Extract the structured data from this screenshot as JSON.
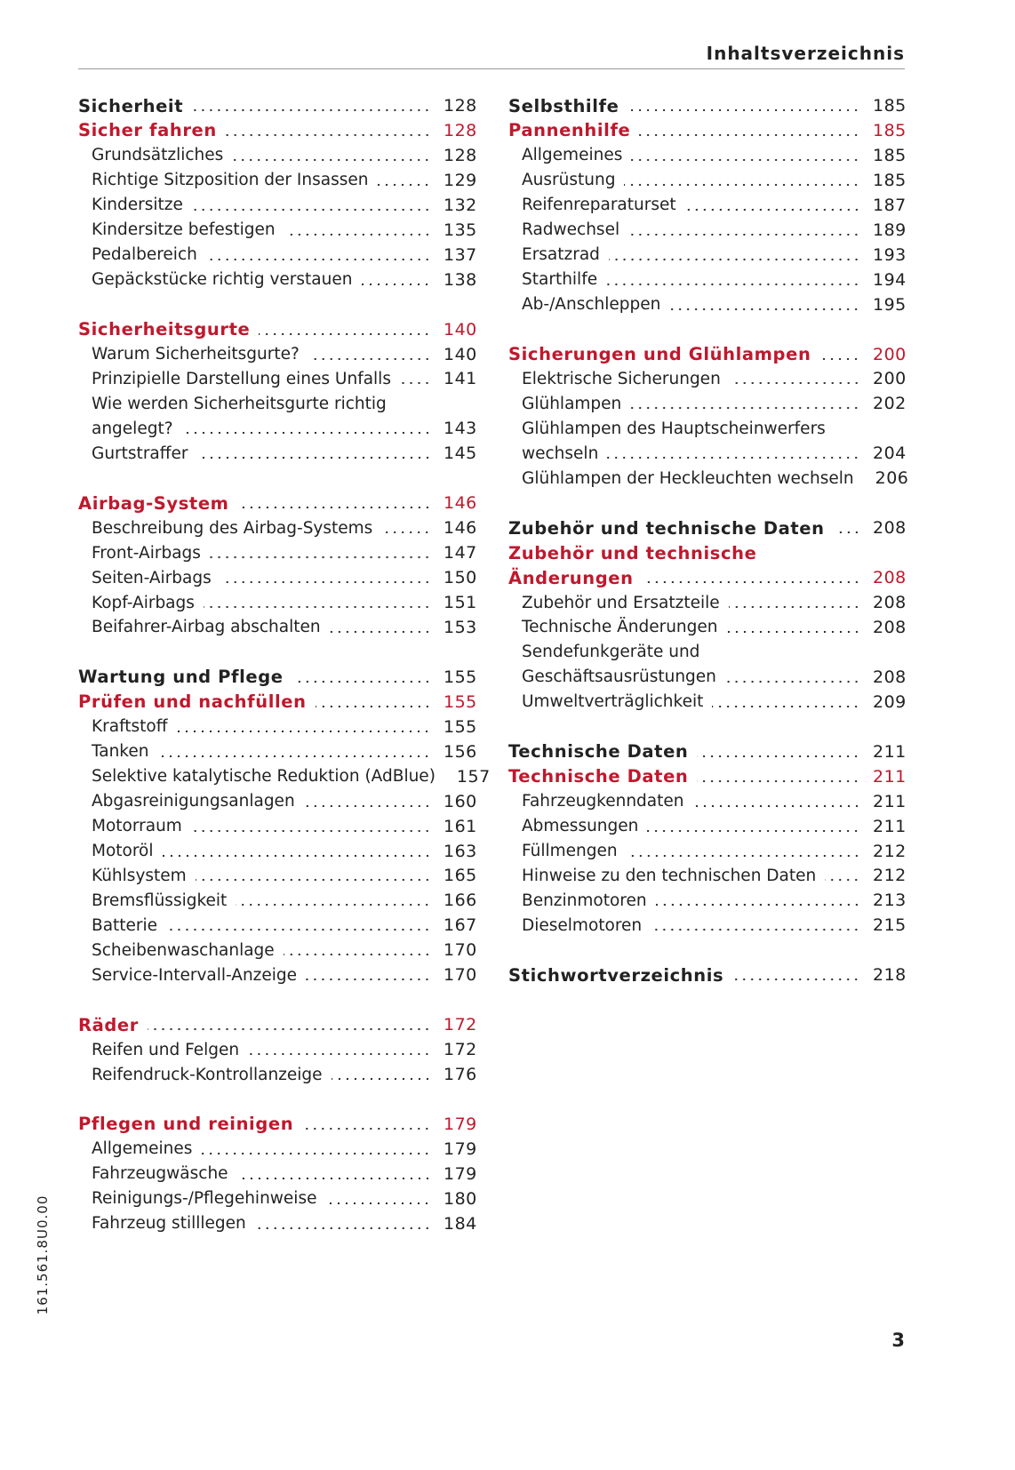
{
  "header": {
    "title": "Inhaltsverzeichnis"
  },
  "columns": [
    {
      "blocks": [
        {
          "chapter": {
            "lines": [
              "Sicherheit"
            ],
            "page": 128
          },
          "section": {
            "lines": [
              "Sicher fahren"
            ],
            "page": 128
          },
          "items": [
            {
              "lines": [
                "Grundsätzliches"
              ],
              "page": 128
            },
            {
              "lines": [
                "Richtige Sitzposition der Insassen"
              ],
              "page": 129
            },
            {
              "lines": [
                "Kindersitze"
              ],
              "page": 132
            },
            {
              "lines": [
                "Kindersitze befestigen"
              ],
              "page": 135
            },
            {
              "lines": [
                "Pedalbereich"
              ],
              "page": 137
            },
            {
              "lines": [
                "Gepäckstücke richtig verstauen"
              ],
              "page": 138
            }
          ]
        },
        {
          "section": {
            "lines": [
              "Sicherheitsgurte"
            ],
            "page": 140
          },
          "items": [
            {
              "lines": [
                "Warum Sicherheitsgurte?"
              ],
              "page": 140
            },
            {
              "lines": [
                "Prinzipielle Darstellung eines Unfalls"
              ],
              "page": 141
            },
            {
              "lines": [
                "Wie werden Sicherheitsgurte richtig",
                "angelegt?"
              ],
              "page": 143
            },
            {
              "lines": [
                "Gurtstraffer"
              ],
              "page": 145
            }
          ]
        },
        {
          "section": {
            "lines": [
              "Airbag-System"
            ],
            "page": 146
          },
          "items": [
            {
              "lines": [
                "Beschreibung des Airbag-Systems"
              ],
              "page": 146
            },
            {
              "lines": [
                "Front-Airbags"
              ],
              "page": 147
            },
            {
              "lines": [
                "Seiten-Airbags"
              ],
              "page": 150
            },
            {
              "lines": [
                "Kopf-Airbags"
              ],
              "page": 151
            },
            {
              "lines": [
                "Beifahrer-Airbag abschalten"
              ],
              "page": 153
            }
          ]
        },
        {
          "chapter": {
            "lines": [
              "Wartung und Pflege"
            ],
            "page": 155
          },
          "section": {
            "lines": [
              "Prüfen und nachfüllen"
            ],
            "page": 155
          },
          "items": [
            {
              "lines": [
                "Kraftstoff"
              ],
              "page": 155
            },
            {
              "lines": [
                "Tanken"
              ],
              "page": 156
            },
            {
              "lines": [
                "Selektive katalytische Reduktion (AdBlue)"
              ],
              "page": 157
            },
            {
              "lines": [
                "Abgasreinigungsanlagen"
              ],
              "page": 160
            },
            {
              "lines": [
                "Motorraum"
              ],
              "page": 161
            },
            {
              "lines": [
                "Motoröl"
              ],
              "page": 163
            },
            {
              "lines": [
                "Kühlsystem"
              ],
              "page": 165
            },
            {
              "lines": [
                "Bremsflüssigkeit"
              ],
              "page": 166
            },
            {
              "lines": [
                "Batterie"
              ],
              "page": 167
            },
            {
              "lines": [
                "Scheibenwaschanlage"
              ],
              "page": 170
            },
            {
              "lines": [
                "Service-Intervall-Anzeige"
              ],
              "page": 170
            }
          ]
        },
        {
          "section": {
            "lines": [
              "Räder"
            ],
            "page": 172
          },
          "items": [
            {
              "lines": [
                "Reifen und Felgen"
              ],
              "page": 172
            },
            {
              "lines": [
                "Reifendruck-Kontrollanzeige"
              ],
              "page": 176
            }
          ]
        },
        {
          "section": {
            "lines": [
              "Pflegen und reinigen"
            ],
            "page": 179
          },
          "items": [
            {
              "lines": [
                "Allgemeines"
              ],
              "page": 179
            },
            {
              "lines": [
                "Fahrzeugwäsche"
              ],
              "page": 179
            },
            {
              "lines": [
                "Reinigungs-/Pflegehinweise"
              ],
              "page": 180
            },
            {
              "lines": [
                "Fahrzeug stilllegen"
              ],
              "page": 184
            }
          ]
        }
      ]
    },
    {
      "blocks": [
        {
          "chapter": {
            "lines": [
              "Selbsthilfe"
            ],
            "page": 185
          },
          "section": {
            "lines": [
              "Pannenhilfe"
            ],
            "page": 185
          },
          "items": [
            {
              "lines": [
                "Allgemeines"
              ],
              "page": 185
            },
            {
              "lines": [
                "Ausrüstung"
              ],
              "page": 185
            },
            {
              "lines": [
                "Reifenreparaturset"
              ],
              "page": 187
            },
            {
              "lines": [
                "Radwechsel"
              ],
              "page": 189
            },
            {
              "lines": [
                "Ersatzrad"
              ],
              "page": 193
            },
            {
              "lines": [
                "Starthilfe"
              ],
              "page": 194
            },
            {
              "lines": [
                "Ab-/Anschleppen"
              ],
              "page": 195
            }
          ]
        },
        {
          "section": {
            "lines": [
              "Sicherungen und Glühlampen"
            ],
            "page": 200
          },
          "items": [
            {
              "lines": [
                "Elektrische Sicherungen"
              ],
              "page": 200
            },
            {
              "lines": [
                "Glühlampen"
              ],
              "page": 202
            },
            {
              "lines": [
                "Glühlampen des Hauptscheinwerfers",
                "wechseln"
              ],
              "page": 204
            },
            {
              "lines": [
                "Glühlampen der Heckleuchten wechseln"
              ],
              "page": 206
            }
          ]
        },
        {
          "chapter": {
            "lines": [
              "Zubehör und technische Daten"
            ],
            "page": 208
          },
          "section": {
            "lines": [
              "Zubehör und technische",
              "Änderungen"
            ],
            "page": 208
          },
          "items": [
            {
              "lines": [
                "Zubehör und Ersatzteile"
              ],
              "page": 208
            },
            {
              "lines": [
                "Technische Änderungen"
              ],
              "page": 208
            },
            {
              "lines": [
                "Sendefunkgeräte und",
                "Geschäftsausrüstungen"
              ],
              "page": 208
            },
            {
              "lines": [
                "Umweltverträglichkeit"
              ],
              "page": 209
            }
          ]
        },
        {
          "chapter": {
            "lines": [
              "Technische Daten"
            ],
            "page": 211
          },
          "section": {
            "lines": [
              "Technische Daten"
            ],
            "page": 211
          },
          "items": [
            {
              "lines": [
                "Fahrzeugkenndaten"
              ],
              "page": 211
            },
            {
              "lines": [
                "Abmessungen"
              ],
              "page": 211
            },
            {
              "lines": [
                "Füllmengen"
              ],
              "page": 212
            },
            {
              "lines": [
                "Hinweise zu den technischen Daten"
              ],
              "page": 212
            },
            {
              "lines": [
                "Benzinmotoren"
              ],
              "page": 213
            },
            {
              "lines": [
                "Dieselmotoren"
              ],
              "page": 215
            }
          ]
        },
        {
          "chapter": {
            "lines": [
              "Stichwortverzeichnis"
            ],
            "page": 218
          }
        }
      ]
    }
  ],
  "code": "161.561.8U0.00",
  "page_number": 3
}
